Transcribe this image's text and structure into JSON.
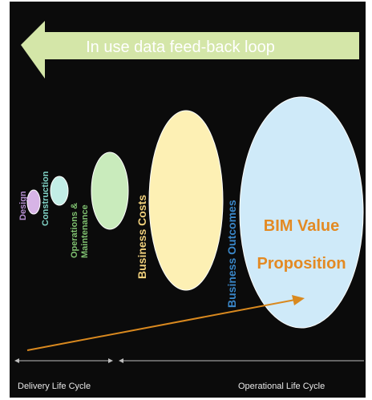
{
  "feedback_arrow": {
    "label": "In use data feed-back loop",
    "color": "#d4e6a8"
  },
  "stages": [
    {
      "id": "design",
      "label": "Design",
      "color": "#d7b4e6"
    },
    {
      "id": "construction",
      "label": "Construction",
      "color": "#c2ede6"
    },
    {
      "id": "operations",
      "label": "Operations &",
      "label2": "Maintenance",
      "color": "#c9ebbc"
    }
  ],
  "business_costs": {
    "label": "Business Costs",
    "color": "#fdf0b4",
    "label_color": "#f0d07c"
  },
  "business_outcomes": {
    "label": "Business Outcomes",
    "color": "#cfeaf9",
    "label_color": "#3a86c7"
  },
  "value": {
    "line1": "BIM Value",
    "line2": "Proposition",
    "color": "#e38a23"
  },
  "timeline": {
    "delivery_label": "Delivery Life Cycle",
    "operational_label": "Operational Life Cycle",
    "line_color": "#bdbdbd"
  },
  "trend_arrow": {
    "color": "#d9891f"
  }
}
